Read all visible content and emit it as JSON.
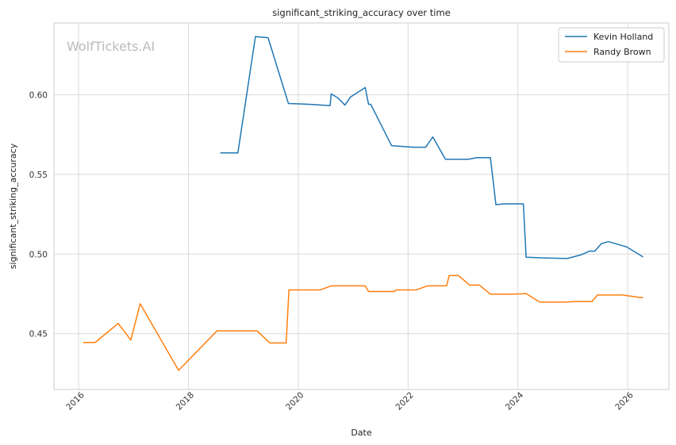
{
  "chart_data": {
    "type": "line",
    "title": "significant_striking_accuracy over time",
    "xlabel": "Date",
    "ylabel": "significant_striking_accuracy",
    "watermark": "WolfTickets.AI",
    "xlim": [
      2015.55,
      2026.75
    ],
    "ylim": [
      0.415,
      0.645
    ],
    "x_ticks": [
      2016,
      2018,
      2020,
      2022,
      2024,
      2026
    ],
    "x_tick_labels": [
      "2016",
      "2018",
      "2020",
      "2022",
      "2024",
      "2026"
    ],
    "y_ticks": [
      0.45,
      0.5,
      0.55,
      0.6
    ],
    "y_tick_labels": [
      "0.45",
      "0.50",
      "0.55",
      "0.60"
    ],
    "grid": true,
    "legend_position": "top-right",
    "series": [
      {
        "name": "Kevin Holland",
        "color": "#1f77b4",
        "points": [
          [
            2018.58,
            0.5635
          ],
          [
            2018.9,
            0.5635
          ],
          [
            2019.22,
            0.6365
          ],
          [
            2019.45,
            0.6358
          ],
          [
            2019.82,
            0.5945
          ],
          [
            2020.2,
            0.594
          ],
          [
            2020.55,
            0.5932
          ],
          [
            2020.58,
            0.5932
          ],
          [
            2020.6,
            0.6005
          ],
          [
            2020.72,
            0.598
          ],
          [
            2020.85,
            0.5935
          ],
          [
            2020.95,
            0.5985
          ],
          [
            2021.22,
            0.6045
          ],
          [
            2021.28,
            0.594
          ],
          [
            2021.32,
            0.594
          ],
          [
            2021.7,
            0.568
          ],
          [
            2022.1,
            0.567
          ],
          [
            2022.32,
            0.567
          ],
          [
            2022.45,
            0.5735
          ],
          [
            2022.68,
            0.5595
          ],
          [
            2023.1,
            0.5595
          ],
          [
            2023.25,
            0.5605
          ],
          [
            2023.5,
            0.5605
          ],
          [
            2023.6,
            0.531
          ],
          [
            2023.75,
            0.5315
          ],
          [
            2024.1,
            0.5315
          ],
          [
            2024.15,
            0.498
          ],
          [
            2024.5,
            0.4975
          ],
          [
            2024.9,
            0.4972
          ],
          [
            2025.15,
            0.4995
          ],
          [
            2025.3,
            0.5018
          ],
          [
            2025.4,
            0.5018
          ],
          [
            2025.52,
            0.5065
          ],
          [
            2025.65,
            0.5078
          ],
          [
            2025.88,
            0.5055
          ],
          [
            2025.98,
            0.5045
          ],
          [
            2026.28,
            0.4982
          ]
        ]
      },
      {
        "name": "Randy Brown",
        "color": "#ff7f0e",
        "points": [
          [
            2016.08,
            0.4445
          ],
          [
            2016.3,
            0.4445
          ],
          [
            2016.72,
            0.4565
          ],
          [
            2016.95,
            0.446
          ],
          [
            2017.12,
            0.4688
          ],
          [
            2017.82,
            0.427
          ],
          [
            2018.52,
            0.4518
          ],
          [
            2019.25,
            0.4518
          ],
          [
            2019.48,
            0.4442
          ],
          [
            2019.78,
            0.4442
          ],
          [
            2019.83,
            0.4775
          ],
          [
            2020.4,
            0.4775
          ],
          [
            2020.6,
            0.48
          ],
          [
            2021.22,
            0.48
          ],
          [
            2021.28,
            0.4765
          ],
          [
            2021.75,
            0.4765
          ],
          [
            2021.78,
            0.4775
          ],
          [
            2022.15,
            0.4775
          ],
          [
            2022.35,
            0.48
          ],
          [
            2022.7,
            0.48
          ],
          [
            2022.75,
            0.4865
          ],
          [
            2022.92,
            0.4865
          ],
          [
            2023.12,
            0.4805
          ],
          [
            2023.3,
            0.4805
          ],
          [
            2023.5,
            0.4748
          ],
          [
            2023.9,
            0.4748
          ],
          [
            2024.15,
            0.4752
          ],
          [
            2024.4,
            0.4698
          ],
          [
            2024.85,
            0.4698
          ],
          [
            2025.05,
            0.4702
          ],
          [
            2025.35,
            0.4702
          ],
          [
            2025.45,
            0.4743
          ],
          [
            2025.9,
            0.4743
          ],
          [
            2026.28,
            0.4725
          ]
        ]
      }
    ]
  }
}
